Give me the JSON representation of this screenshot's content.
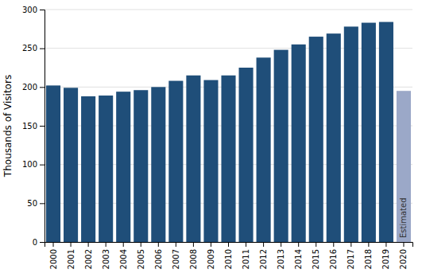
{
  "chart_data": {
    "type": "bar",
    "ylabel": "Thousands of Visitors",
    "categories": [
      "2000",
      "2001",
      "2002",
      "2003",
      "2004",
      "2005",
      "2006",
      "2007",
      "2008",
      "2009",
      "2010",
      "2011",
      "2012",
      "2013",
      "2014",
      "2015",
      "2016",
      "2017",
      "2018",
      "2019",
      "2020"
    ],
    "values": [
      202,
      199,
      188,
      189,
      194,
      196,
      200,
      208,
      215,
      209,
      215,
      225,
      238,
      248,
      255,
      265,
      269,
      278,
      283,
      284,
      195
    ],
    "colors": [
      "#1f4e79",
      "#1f4e79",
      "#1f4e79",
      "#1f4e79",
      "#1f4e79",
      "#1f4e79",
      "#1f4e79",
      "#1f4e79",
      "#1f4e79",
      "#1f4e79",
      "#1f4e79",
      "#1f4e79",
      "#1f4e79",
      "#1f4e79",
      "#1f4e79",
      "#1f4e79",
      "#1f4e79",
      "#1f4e79",
      "#1f4e79",
      "#1f4e79",
      "#9ba8c8"
    ],
    "annotations": [
      "Estimated"
    ],
    "ylim": [
      0,
      300
    ],
    "yticks": [
      0,
      50,
      100,
      150,
      200,
      250,
      300
    ],
    "grid": true
  }
}
